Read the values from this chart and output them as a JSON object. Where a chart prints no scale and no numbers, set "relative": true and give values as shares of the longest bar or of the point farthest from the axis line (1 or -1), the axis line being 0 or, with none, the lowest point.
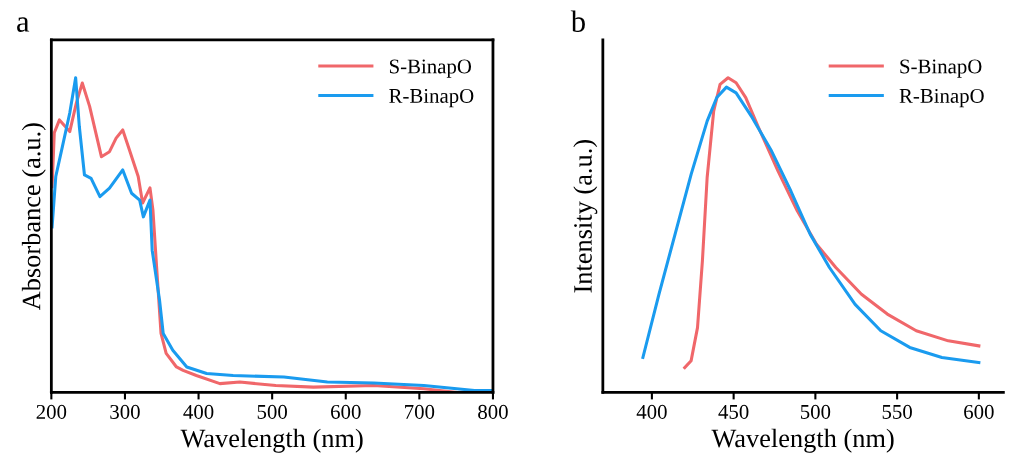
{
  "chart_data": [
    {
      "type": "line",
      "title": "a",
      "xlabel": "Wavelength (nm)",
      "ylabel": "Absorbance (a.u.)",
      "relative": true,
      "xlim": [
        200,
        800
      ],
      "xticks": [
        200,
        300,
        400,
        500,
        600,
        700,
        800
      ],
      "tick_labels": "x",
      "legend": "top right",
      "grid": false,
      "marker": "none",
      "line_style": "solid",
      "series": [
        {
          "name": "S-BinapO",
          "color": "#f0676a",
          "x": [
            201,
            204,
            211,
            225,
            234,
            242,
            252,
            268,
            279,
            288,
            297,
            306,
            318,
            324,
            334,
            338,
            343,
            349,
            356,
            370,
            379,
            397,
            429,
            456,
            505,
            556,
            638,
            706,
            752,
            797
          ],
          "values": [
            0.654,
            0.825,
            0.866,
            0.829,
            0.92,
            0.983,
            0.909,
            0.749,
            0.765,
            0.808,
            0.834,
            0.771,
            0.686,
            0.602,
            0.65,
            0.58,
            0.399,
            0.188,
            0.124,
            0.081,
            0.07,
            0.054,
            0.028,
            0.033,
            0.022,
            0.017,
            0.022,
            0.012,
            0.0,
            0.006
          ]
        },
        {
          "name": "R-BinapO",
          "color": "#1a9bef",
          "x": [
            201,
            206,
            215,
            225,
            233,
            238,
            245,
            254,
            266,
            279,
            297,
            309,
            320,
            325,
            334,
            337,
            347,
            352,
            365,
            384,
            411,
            447,
            516,
            575,
            638,
            706,
            775,
            797
          ],
          "values": [
            0.526,
            0.686,
            0.781,
            0.888,
            1.0,
            0.845,
            0.691,
            0.68,
            0.622,
            0.649,
            0.707,
            0.633,
            0.611,
            0.558,
            0.611,
            0.452,
            0.293,
            0.187,
            0.134,
            0.081,
            0.06,
            0.054,
            0.049,
            0.033,
            0.03,
            0.022,
            0.006,
            0.006
          ]
        }
      ]
    },
    {
      "type": "line",
      "title": "b",
      "xlabel": "Wavelength (nm)",
      "ylabel": "Intensity (a.u.)",
      "relative": true,
      "xlim": [
        370,
        615
      ],
      "xticks": [
        400,
        450,
        500,
        550,
        600
      ],
      "tick_labels": "x",
      "legend": "top right",
      "grid": false,
      "marker": "none",
      "line_style": "solid",
      "series": [
        {
          "name": "S-BinapO",
          "color": "#f0676a",
          "x": [
            420.1,
            424.0,
            427.9,
            430.9,
            433.8,
            437.8,
            441.7,
            446.6,
            451.5,
            457.4,
            465.3,
            477.1,
            488.9,
            500.7,
            512.5,
            528.2,
            544.0,
            561.7,
            581.3,
            600
          ],
          "values": [
            0.079,
            0.101,
            0.206,
            0.418,
            0.683,
            0.894,
            0.979,
            1.0,
            0.984,
            0.937,
            0.841,
            0.704,
            0.577,
            0.471,
            0.397,
            0.312,
            0.249,
            0.196,
            0.164,
            0.148
          ]
        },
        {
          "name": "R-BinapO",
          "color": "#1a9bef",
          "x": [
            394.5,
            404.3,
            414.2,
            424.0,
            433.8,
            439.7,
            445.6,
            451.5,
            461.4,
            473.2,
            485.0,
            496.8,
            508.6,
            524.3,
            540.0,
            557.7,
            577.4,
            600
          ],
          "values": [
            0.111,
            0.312,
            0.503,
            0.693,
            0.862,
            0.937,
            0.97,
            0.952,
            0.873,
            0.767,
            0.64,
            0.503,
            0.397,
            0.28,
            0.196,
            0.143,
            0.111,
            0.095
          ]
        }
      ]
    }
  ]
}
